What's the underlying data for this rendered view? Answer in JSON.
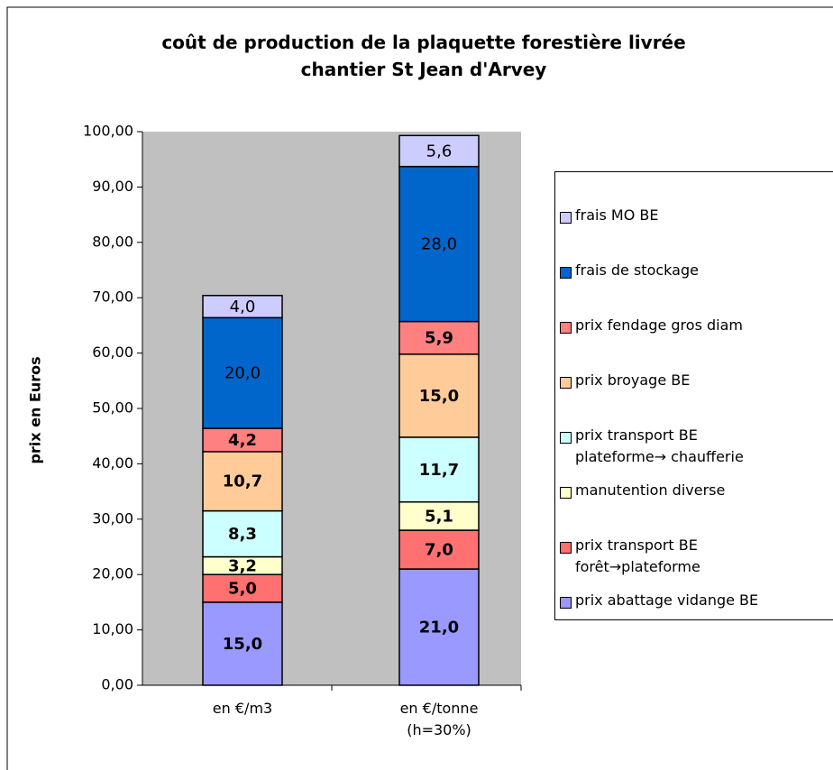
{
  "chart_data": {
    "type": "stacked_bar",
    "title": "coût de production de la plaquette forestière livrée\nchantier St Jean d'Arvey",
    "y_label": "prix en Euros",
    "categories": [
      "en €/m3",
      "en €/tonne\n(h=30%)"
    ],
    "series": [
      {
        "name": "prix abattage vidange BE",
        "color": "#9999ff",
        "label_bold": true,
        "values": [
          15.0,
          21.0
        ],
        "value_labels": [
          "15,0",
          "21,0"
        ]
      },
      {
        "name": "prix transport BE\nforêt→plateforme",
        "color": "#ff7070",
        "label_bold": true,
        "values": [
          5.0,
          7.0
        ],
        "value_labels": [
          "5,0",
          "7,0"
        ]
      },
      {
        "name": "manutention diverse",
        "color": "#ffffcc",
        "label_bold": true,
        "values": [
          3.2,
          5.1
        ],
        "value_labels": [
          "3,2",
          "5,1"
        ]
      },
      {
        "name": "prix transport BE\nplateforme→ chaufferie",
        "color": "#ccffff",
        "label_bold": true,
        "values": [
          8.3,
          11.7
        ],
        "value_labels": [
          "8,3",
          "11,7"
        ]
      },
      {
        "name": "prix broyage BE",
        "color": "#ffcc99",
        "label_bold": true,
        "values": [
          10.7,
          15.0
        ],
        "value_labels": [
          "10,7",
          "15,0"
        ]
      },
      {
        "name": "prix fendage gros diam",
        "color": "#ff8080",
        "label_bold": true,
        "values": [
          4.2,
          5.9
        ],
        "value_labels": [
          "4,2",
          "5,9"
        ]
      },
      {
        "name": "frais de stockage",
        "color": "#0066cc",
        "label_bold": false,
        "values": [
          20.0,
          28.0
        ],
        "value_labels": [
          "20,0",
          "28,0"
        ]
      },
      {
        "name": "frais MO BE",
        "color": "#ccccff",
        "label_bold": false,
        "values": [
          4.0,
          5.6
        ],
        "value_labels": [
          "4,0",
          "5,6"
        ]
      }
    ],
    "ylim": [
      0,
      100
    ],
    "yticks": [
      {
        "value": 0,
        "label": "0,00"
      },
      {
        "value": 10,
        "label": "10,00"
      },
      {
        "value": 20,
        "label": "20,00"
      },
      {
        "value": 30,
        "label": "30,00"
      },
      {
        "value": 40,
        "label": "40,00"
      },
      {
        "value": 50,
        "label": "50,00"
      },
      {
        "value": 60,
        "label": "60,00"
      },
      {
        "value": 70,
        "label": "70,00"
      },
      {
        "value": 80,
        "label": "80,00"
      },
      {
        "value": 90,
        "label": "90,00"
      },
      {
        "value": 100,
        "label": "100,00"
      }
    ],
    "legend": "right"
  }
}
